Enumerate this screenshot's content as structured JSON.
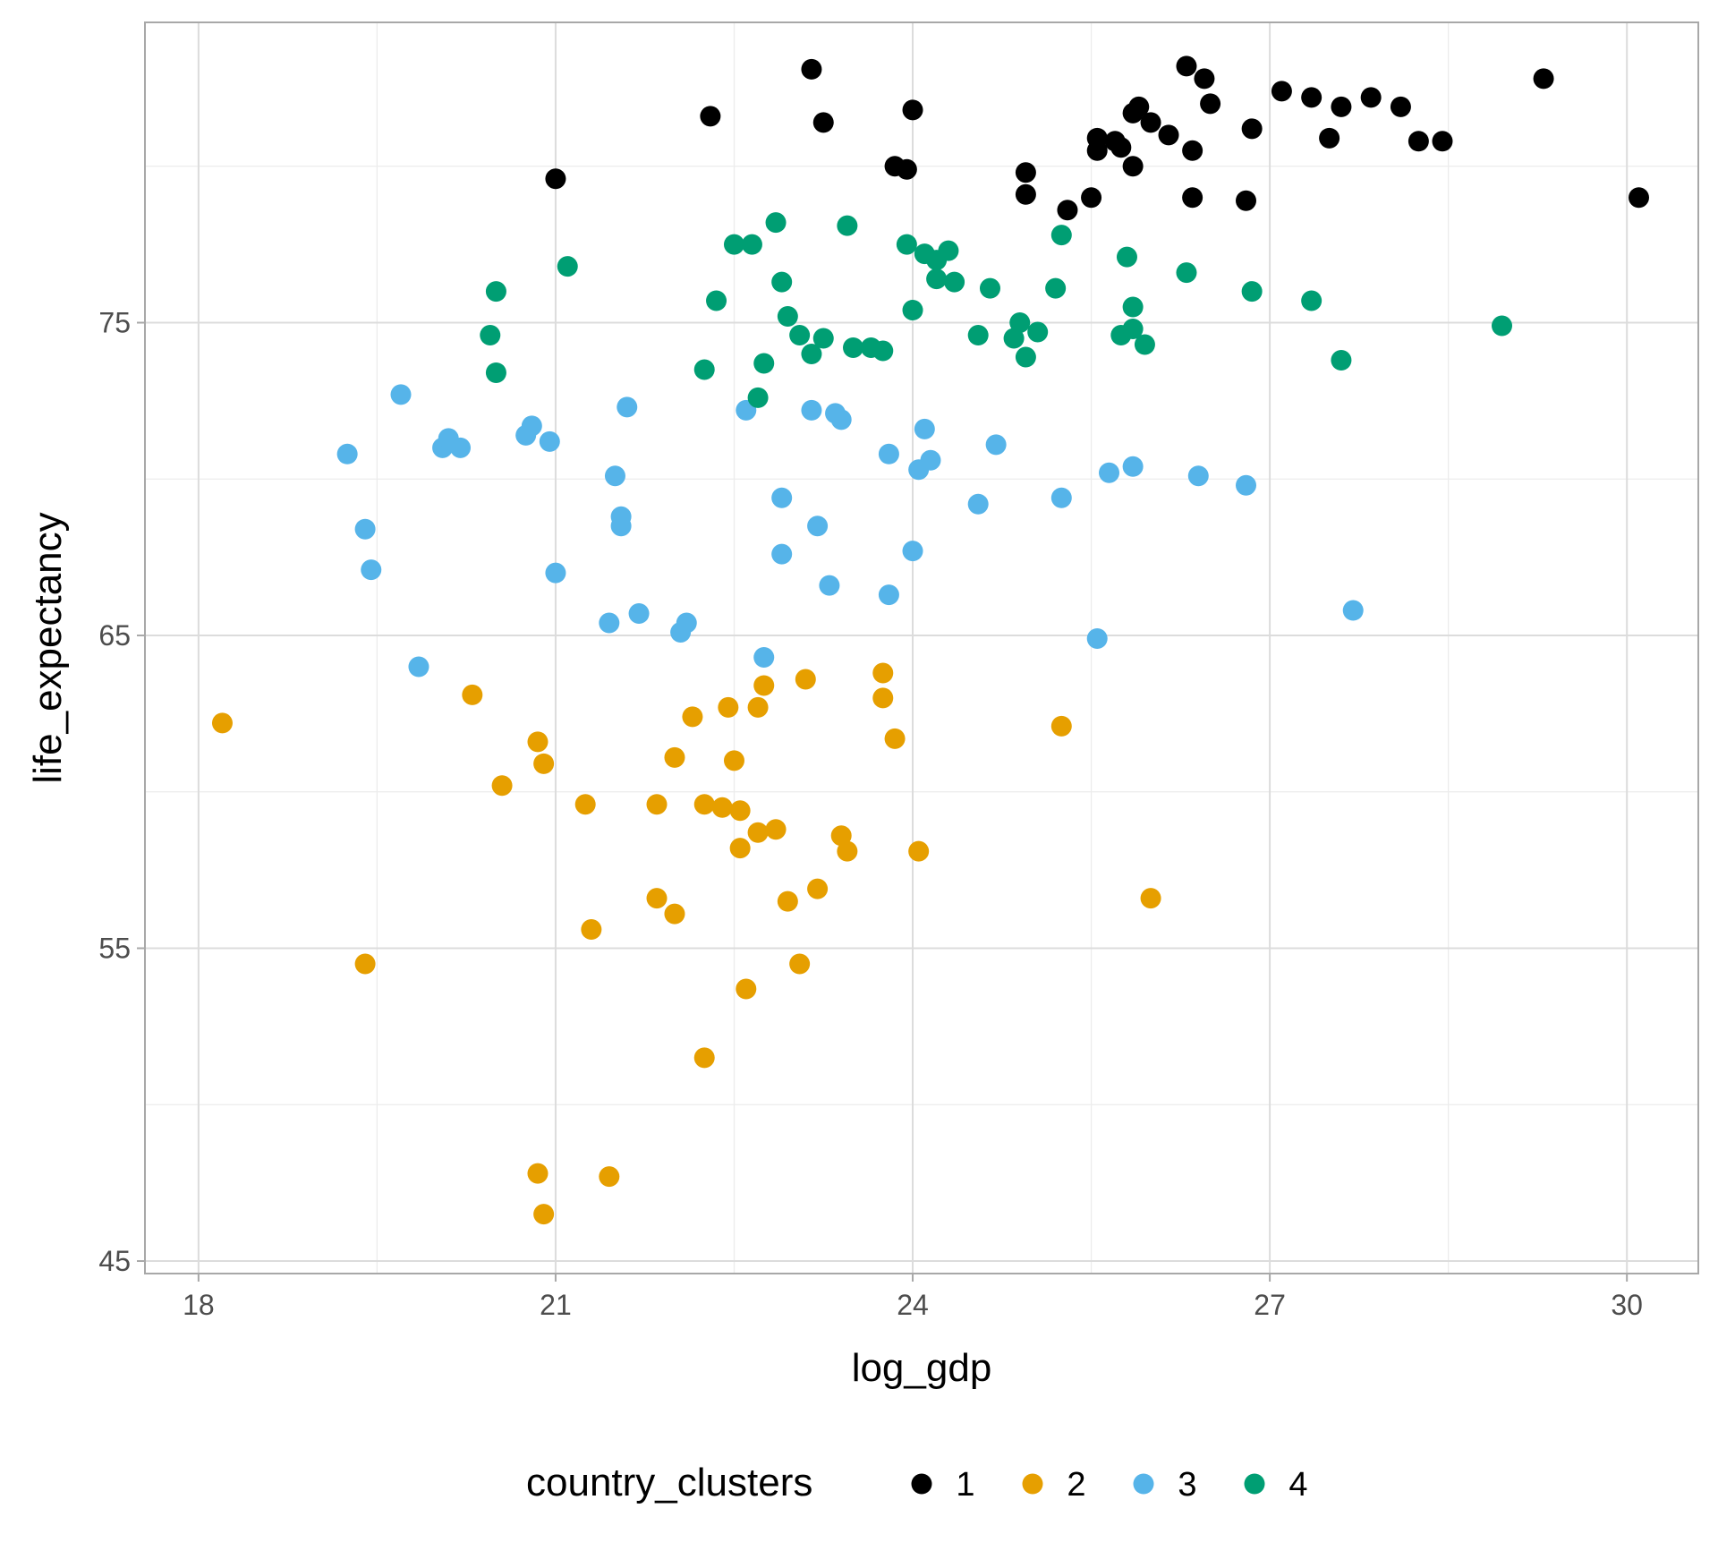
{
  "chart_data": {
    "type": "scatter",
    "title": "",
    "xlabel": "log_gdp",
    "ylabel": "life_expectancy",
    "xlim": [
      17.55,
      30.6
    ],
    "ylim": [
      44.6,
      84.6
    ],
    "x_ticks": [
      18,
      21,
      24,
      27,
      30
    ],
    "y_ticks": [
      45,
      55,
      65,
      75
    ],
    "x_minor_ticks": [
      19.5,
      22.5,
      25.5,
      28.5
    ],
    "y_minor_ticks": [
      50,
      60,
      70,
      80
    ],
    "grid": true,
    "legend": {
      "title": "country_clusters",
      "position": "bottom"
    },
    "series": [
      {
        "name": "1",
        "color": "#000000",
        "points": [
          [
            21.0,
            79.6
          ],
          [
            22.3,
            81.6
          ],
          [
            23.15,
            83.1
          ],
          [
            23.25,
            81.4
          ],
          [
            23.85,
            80.0
          ],
          [
            23.95,
            79.9
          ],
          [
            24.0,
            81.8
          ],
          [
            24.95,
            79.8
          ],
          [
            24.95,
            79.1
          ],
          [
            25.3,
            78.6
          ],
          [
            25.5,
            79.0
          ],
          [
            25.55,
            80.9
          ],
          [
            25.55,
            80.5
          ],
          [
            25.7,
            80.8
          ],
          [
            25.75,
            80.6
          ],
          [
            25.85,
            80.0
          ],
          [
            25.85,
            81.7
          ],
          [
            25.9,
            81.9
          ],
          [
            26.0,
            81.4
          ],
          [
            26.15,
            81.0
          ],
          [
            26.3,
            83.2
          ],
          [
            26.35,
            80.5
          ],
          [
            26.35,
            79.0
          ],
          [
            26.45,
            82.8
          ],
          [
            26.5,
            82.0
          ],
          [
            26.8,
            78.9
          ],
          [
            26.85,
            81.2
          ],
          [
            27.1,
            82.4
          ],
          [
            27.35,
            82.2
          ],
          [
            27.5,
            80.9
          ],
          [
            27.6,
            81.9
          ],
          [
            27.85,
            82.2
          ],
          [
            28.1,
            81.9
          ],
          [
            28.25,
            80.8
          ],
          [
            28.45,
            80.8
          ],
          [
            29.3,
            82.8
          ],
          [
            30.1,
            79.0
          ]
        ]
      },
      {
        "name": "2",
        "color": "#E69F00",
        "points": [
          [
            18.2,
            62.2
          ],
          [
            19.4,
            54.5
          ],
          [
            20.3,
            63.1
          ],
          [
            20.55,
            60.2
          ],
          [
            20.85,
            61.6
          ],
          [
            20.9,
            60.9
          ],
          [
            20.85,
            47.8
          ],
          [
            20.9,
            46.5
          ],
          [
            21.25,
            59.6
          ],
          [
            21.3,
            55.6
          ],
          [
            21.45,
            47.7
          ],
          [
            21.85,
            59.6
          ],
          [
            21.85,
            56.6
          ],
          [
            22.0,
            56.1
          ],
          [
            22.0,
            61.1
          ],
          [
            22.15,
            62.4
          ],
          [
            22.25,
            59.6
          ],
          [
            22.25,
            51.5
          ],
          [
            22.4,
            59.5
          ],
          [
            22.45,
            62.7
          ],
          [
            22.5,
            61.0
          ],
          [
            22.55,
            59.4
          ],
          [
            22.55,
            58.2
          ],
          [
            22.6,
            53.7
          ],
          [
            22.7,
            62.7
          ],
          [
            22.7,
            58.7
          ],
          [
            22.75,
            63.4
          ],
          [
            22.85,
            58.8
          ],
          [
            22.95,
            56.5
          ],
          [
            23.05,
            54.5
          ],
          [
            23.1,
            63.6
          ],
          [
            23.2,
            56.9
          ],
          [
            23.4,
            58.6
          ],
          [
            23.45,
            58.1
          ],
          [
            23.75,
            63.8
          ],
          [
            23.75,
            63.0
          ],
          [
            23.85,
            61.7
          ],
          [
            24.05,
            58.1
          ],
          [
            25.25,
            62.1
          ],
          [
            26.0,
            56.6
          ]
        ]
      },
      {
        "name": "3",
        "color": "#56B4E9",
        "points": [
          [
            19.25,
            70.8
          ],
          [
            19.4,
            68.4
          ],
          [
            19.45,
            67.1
          ],
          [
            19.7,
            72.7
          ],
          [
            19.85,
            64.0
          ],
          [
            20.05,
            71.0
          ],
          [
            20.1,
            71.3
          ],
          [
            20.2,
            71.0
          ],
          [
            20.75,
            71.4
          ],
          [
            20.8,
            71.7
          ],
          [
            20.95,
            71.2
          ],
          [
            21.0,
            67.0
          ],
          [
            21.45,
            65.4
          ],
          [
            21.5,
            70.1
          ],
          [
            21.55,
            68.5
          ],
          [
            21.55,
            68.8
          ],
          [
            21.6,
            72.3
          ],
          [
            21.7,
            65.7
          ],
          [
            22.05,
            65.1
          ],
          [
            22.1,
            65.4
          ],
          [
            22.6,
            72.2
          ],
          [
            22.75,
            64.3
          ],
          [
            22.9,
            69.4
          ],
          [
            22.9,
            67.6
          ],
          [
            23.15,
            72.2
          ],
          [
            23.2,
            68.5
          ],
          [
            23.3,
            66.6
          ],
          [
            23.35,
            72.1
          ],
          [
            23.4,
            71.9
          ],
          [
            23.8,
            70.8
          ],
          [
            23.8,
            66.3
          ],
          [
            24.0,
            67.7
          ],
          [
            24.05,
            70.3
          ],
          [
            24.1,
            71.6
          ],
          [
            24.15,
            70.6
          ],
          [
            24.55,
            69.2
          ],
          [
            24.7,
            71.1
          ],
          [
            25.25,
            69.4
          ],
          [
            25.55,
            64.9
          ],
          [
            25.65,
            70.2
          ],
          [
            25.85,
            70.4
          ],
          [
            26.4,
            70.1
          ],
          [
            26.8,
            69.8
          ],
          [
            27.7,
            65.8
          ]
        ]
      },
      {
        "name": "4",
        "color": "#009E73",
        "points": [
          [
            20.45,
            74.6
          ],
          [
            20.5,
            76.0
          ],
          [
            20.5,
            73.4
          ],
          [
            21.1,
            76.8
          ],
          [
            22.25,
            73.5
          ],
          [
            22.35,
            75.7
          ],
          [
            22.5,
            77.5
          ],
          [
            22.65,
            77.5
          ],
          [
            22.7,
            72.6
          ],
          [
            22.75,
            73.7
          ],
          [
            22.85,
            78.2
          ],
          [
            22.9,
            76.3
          ],
          [
            22.95,
            75.2
          ],
          [
            23.05,
            74.6
          ],
          [
            23.15,
            74.0
          ],
          [
            23.25,
            74.5
          ],
          [
            23.45,
            78.1
          ],
          [
            23.5,
            74.2
          ],
          [
            23.65,
            74.2
          ],
          [
            23.75,
            74.1
          ],
          [
            23.95,
            77.5
          ],
          [
            24.0,
            75.4
          ],
          [
            24.1,
            77.2
          ],
          [
            24.2,
            77.0
          ],
          [
            24.2,
            76.4
          ],
          [
            24.3,
            77.3
          ],
          [
            24.35,
            76.3
          ],
          [
            24.55,
            74.6
          ],
          [
            24.65,
            76.1
          ],
          [
            24.85,
            74.5
          ],
          [
            24.9,
            75.0
          ],
          [
            24.95,
            73.9
          ],
          [
            25.05,
            74.7
          ],
          [
            25.2,
            76.1
          ],
          [
            25.25,
            77.8
          ],
          [
            25.75,
            74.6
          ],
          [
            25.8,
            77.1
          ],
          [
            25.85,
            75.5
          ],
          [
            25.85,
            74.8
          ],
          [
            25.95,
            74.3
          ],
          [
            26.3,
            76.6
          ],
          [
            26.85,
            76.0
          ],
          [
            27.35,
            75.7
          ],
          [
            27.6,
            73.8
          ],
          [
            28.95,
            74.9
          ]
        ]
      }
    ]
  }
}
